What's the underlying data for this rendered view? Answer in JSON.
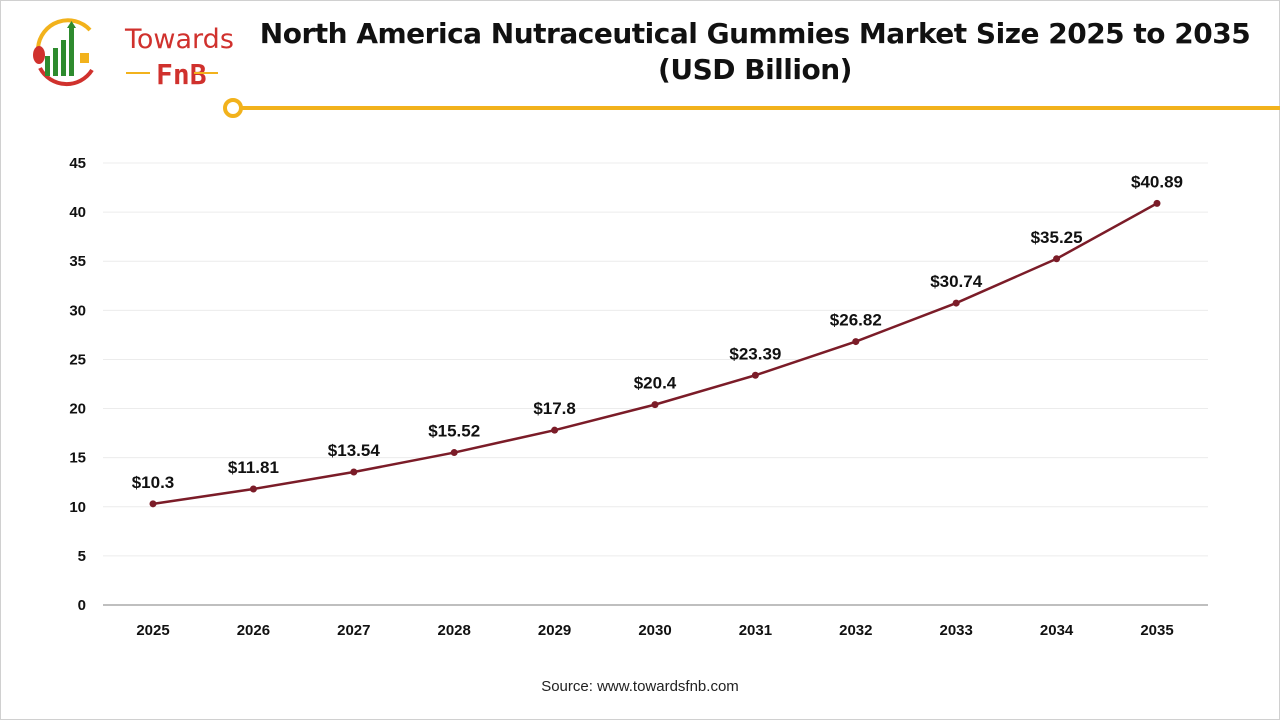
{
  "brand": {
    "line1": "Towards",
    "line2": "FnB"
  },
  "title_line1": "North America Nutraceutical Gummies Market Size 2025 to 2035",
  "title_line2": "(USD Billion)",
  "source": "Source: www.towardsfnb.com",
  "colors": {
    "line": "#7b1c28",
    "accent": "#f2b21c",
    "brand_red": "#d0312d",
    "brand_green": "#2e8b2e"
  },
  "chart_data": {
    "type": "line",
    "title": "North America Nutraceutical Gummies Market Size 2025 to 2035 (USD Billion)",
    "categories": [
      "2025",
      "2026",
      "2027",
      "2028",
      "2029",
      "2030",
      "2031",
      "2032",
      "2033",
      "2034",
      "2035"
    ],
    "values": [
      10.3,
      11.81,
      13.54,
      15.52,
      17.8,
      20.4,
      23.39,
      26.82,
      30.74,
      35.25,
      40.89
    ],
    "data_labels": [
      "$10.3",
      "$11.81",
      "$13.54",
      "$15.52",
      "$17.8",
      "$20.4",
      "$23.39",
      "$26.82",
      "$30.74",
      "$35.25",
      "$40.89"
    ],
    "ylim": [
      0,
      45
    ],
    "yticks": [
      0,
      5,
      10,
      15,
      20,
      25,
      30,
      35,
      40,
      45
    ],
    "grid": true,
    "legend": "none"
  }
}
